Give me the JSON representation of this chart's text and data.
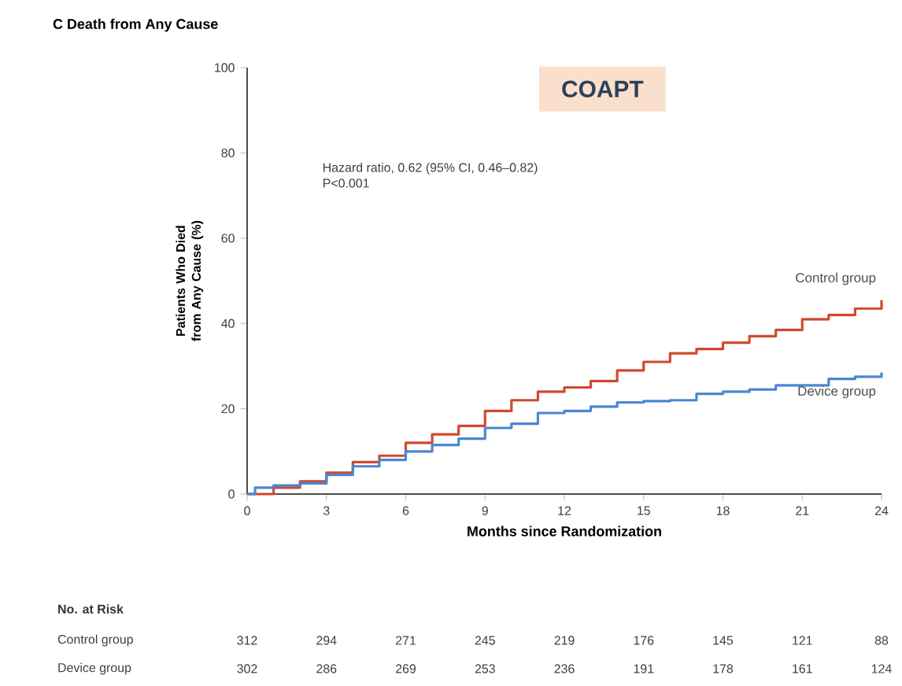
{
  "chart_data": {
    "type": "step",
    "title": "C  Death from Any Cause",
    "xlabel": "Months since Randomization",
    "ylabel": "Patients Who Died from Any Cause (%)",
    "xlim": [
      0,
      24
    ],
    "xticks": [
      0,
      3,
      6,
      9,
      12,
      15,
      18,
      21,
      24
    ],
    "ylim": [
      0,
      100
    ],
    "yticks": [
      0,
      20,
      40,
      60,
      80,
      100
    ],
    "grid": false,
    "legend": false,
    "marker": "none",
    "line_style": "solid",
    "series": [
      {
        "name": "Control group",
        "color": "#d0492f",
        "x": [
          0,
          0.5,
          1,
          2,
          3,
          4,
          5,
          6,
          7,
          8,
          9,
          10,
          11,
          12,
          13,
          14,
          15,
          16,
          17,
          18,
          19,
          20,
          21,
          22,
          23,
          24
        ],
        "values": [
          0,
          0,
          1.5,
          3,
          5,
          7.5,
          9,
          12,
          14,
          16,
          19.5,
          22,
          24,
          25,
          26.5,
          29,
          31,
          33,
          34,
          35.5,
          37,
          38.5,
          41,
          42,
          43.5,
          45.5
        ]
      },
      {
        "name": "Device group",
        "color": "#4a86d4",
        "x": [
          0,
          0.3,
          1,
          2,
          3,
          4,
          5,
          6,
          7,
          8,
          9,
          10,
          11,
          12,
          13,
          14,
          15,
          16,
          17,
          18,
          19,
          20,
          21,
          22,
          23,
          24
        ],
        "values": [
          0,
          1.5,
          2,
          2.5,
          4.5,
          6.5,
          8,
          10,
          11.5,
          13,
          15.5,
          16.5,
          19,
          19.5,
          20.5,
          21.5,
          21.8,
          22,
          23.5,
          24,
          24.5,
          25.5,
          25.5,
          27,
          27.5,
          28.5
        ]
      }
    ],
    "annotations": [
      "COAPT",
      "Hazard ratio, 0.62 (95% CI, 0.46–0.82)",
      "P<0.001",
      "No. at Risk",
      "312",
      "294",
      "271",
      "245",
      "219",
      "176",
      "145",
      "121",
      "88",
      "302",
      "286",
      "269",
      "253",
      "236",
      "191",
      "178",
      "161",
      "124"
    ]
  }
}
